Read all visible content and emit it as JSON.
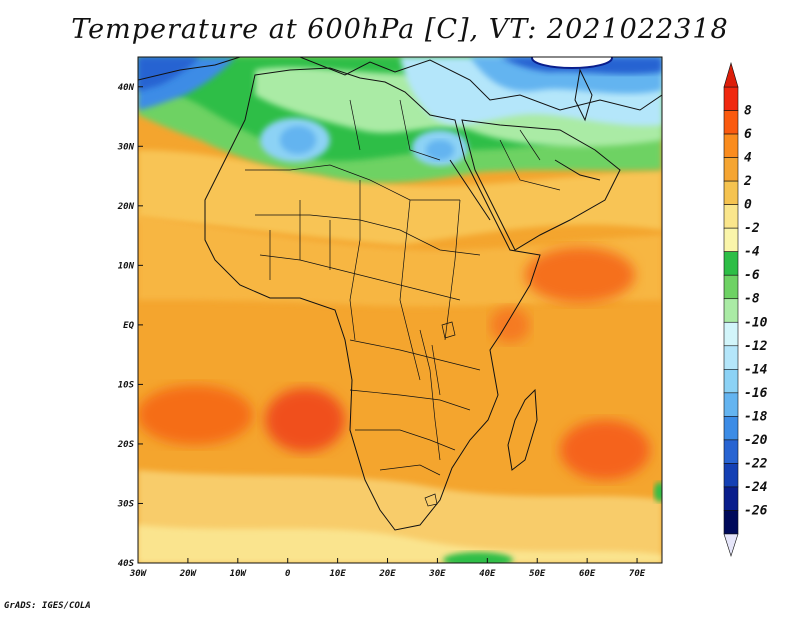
{
  "title": "Temperature at 600hPa [C], VT: 2021022318",
  "credit": "GrADS: IGES/COLA",
  "map": {
    "lon_range": [
      -30,
      75
    ],
    "lat_range": [
      -40,
      45
    ],
    "lon_ticks": [
      {
        "value": -30,
        "label": "30W"
      },
      {
        "value": -20,
        "label": "20W"
      },
      {
        "value": -10,
        "label": "10W"
      },
      {
        "value": 0,
        "label": "0"
      },
      {
        "value": 10,
        "label": "10E"
      },
      {
        "value": 20,
        "label": "20E"
      },
      {
        "value": 30,
        "label": "30E"
      },
      {
        "value": 40,
        "label": "40E"
      },
      {
        "value": 50,
        "label": "50E"
      },
      {
        "value": 60,
        "label": "60E"
      },
      {
        "value": 70,
        "label": "70E"
      }
    ],
    "lat_ticks": [
      {
        "value": 40,
        "label": "40N"
      },
      {
        "value": 30,
        "label": "30N"
      },
      {
        "value": 20,
        "label": "20N"
      },
      {
        "value": 10,
        "label": "10N"
      },
      {
        "value": 0,
        "label": "EQ"
      },
      {
        "value": -10,
        "label": "10S"
      },
      {
        "value": -20,
        "label": "20S"
      },
      {
        "value": -30,
        "label": "30S"
      },
      {
        "value": -40,
        "label": "40S"
      }
    ],
    "background_color": "#f4a52e"
  },
  "colorbar": {
    "levels": [
      8,
      6,
      4,
      2,
      0,
      -2,
      -4,
      -6,
      -8,
      -10,
      -12,
      -14,
      -16,
      -18,
      -20,
      -22,
      -24,
      -26
    ],
    "labels": [
      "8",
      "6",
      "4",
      "2",
      "0",
      "-2",
      "-4",
      "-6",
      "-8",
      "-10",
      "-12",
      "-14",
      "-16",
      "-18",
      "-20",
      "-22",
      "-24",
      "-26"
    ],
    "colors": [
      "#f0280f",
      "#fa5a0f",
      "#fa8c1e",
      "#f5a532",
      "#f5c350",
      "#fae68c",
      "#faf5aa",
      "#2dbe46",
      "#6ed264",
      "#aaeba5",
      "#d2f5fa",
      "#b4e6fa",
      "#8cd2f5",
      "#64b4f0",
      "#3c8ce6",
      "#2864d2",
      "#1440b4",
      "#0a1e8c",
      "#000a5a"
    ],
    "top_arrow_color": "#dc1e0a",
    "bottom_arrow_color": "#e6e6fa"
  }
}
